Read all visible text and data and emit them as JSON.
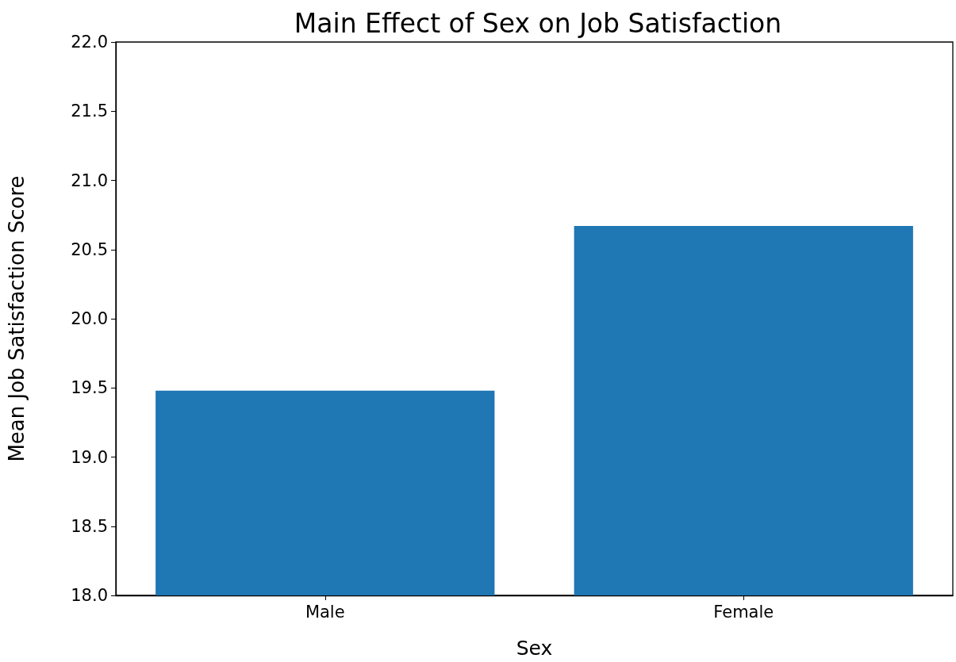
{
  "chart_data": {
    "type": "bar",
    "title": "Main Effect of Sex on Job Satisfaction",
    "xlabel": "Sex",
    "ylabel": "Mean Job Satisfaction Score",
    "categories": [
      "Male",
      "Female"
    ],
    "values": [
      19.48,
      20.67
    ],
    "color": "#1f77b4",
    "ylim": [
      18,
      22
    ],
    "yticks": [
      {
        "value": 18,
        "label": "18.0"
      },
      {
        "value": 18.5,
        "label": "18.5"
      },
      {
        "value": 19,
        "label": "19.0"
      },
      {
        "value": 19.5,
        "label": "19.5"
      },
      {
        "value": 20,
        "label": "20.0"
      },
      {
        "value": 20.5,
        "label": "20.5"
      },
      {
        "value": 21,
        "label": "21.0"
      },
      {
        "value": 21.5,
        "label": "21.5"
      },
      {
        "value": 22,
        "label": "22.0"
      }
    ],
    "grid": false
  }
}
